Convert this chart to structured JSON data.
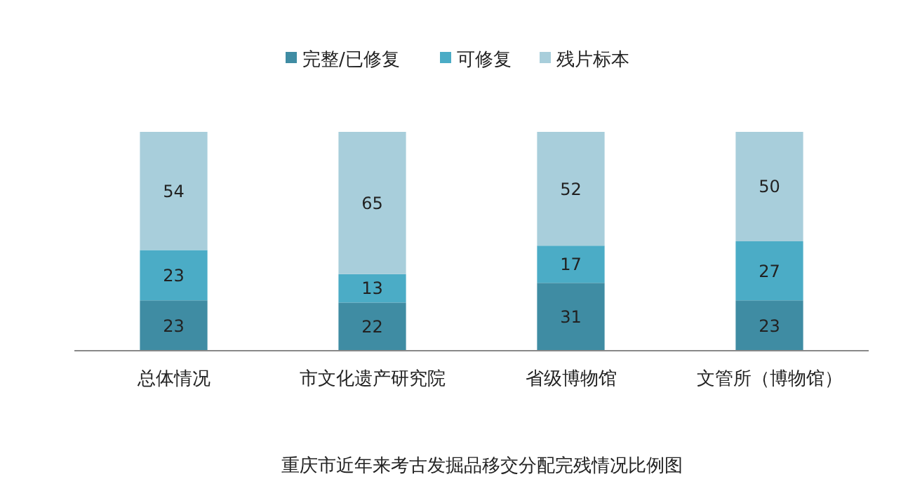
{
  "chart_data": {
    "type": "bar",
    "stacked": true,
    "title": "重庆市近年来考古发掘品移交分配完残情况比例图",
    "categories": [
      "总体情况",
      "市文化遗产研究院",
      "省级博物馆",
      "文管所（博物馆）"
    ],
    "series": [
      {
        "name": "完整/已修复",
        "color": "#3f8ca3",
        "values": [
          23,
          22,
          31,
          23
        ]
      },
      {
        "name": "可修复",
        "color": "#4bacc6",
        "values": [
          23,
          13,
          17,
          27
        ]
      },
      {
        "name": "残片标本",
        "color": "#a8cedb",
        "values": [
          54,
          65,
          52,
          50
        ]
      }
    ],
    "data_labels": true,
    "legend": "top",
    "grid": false
  }
}
